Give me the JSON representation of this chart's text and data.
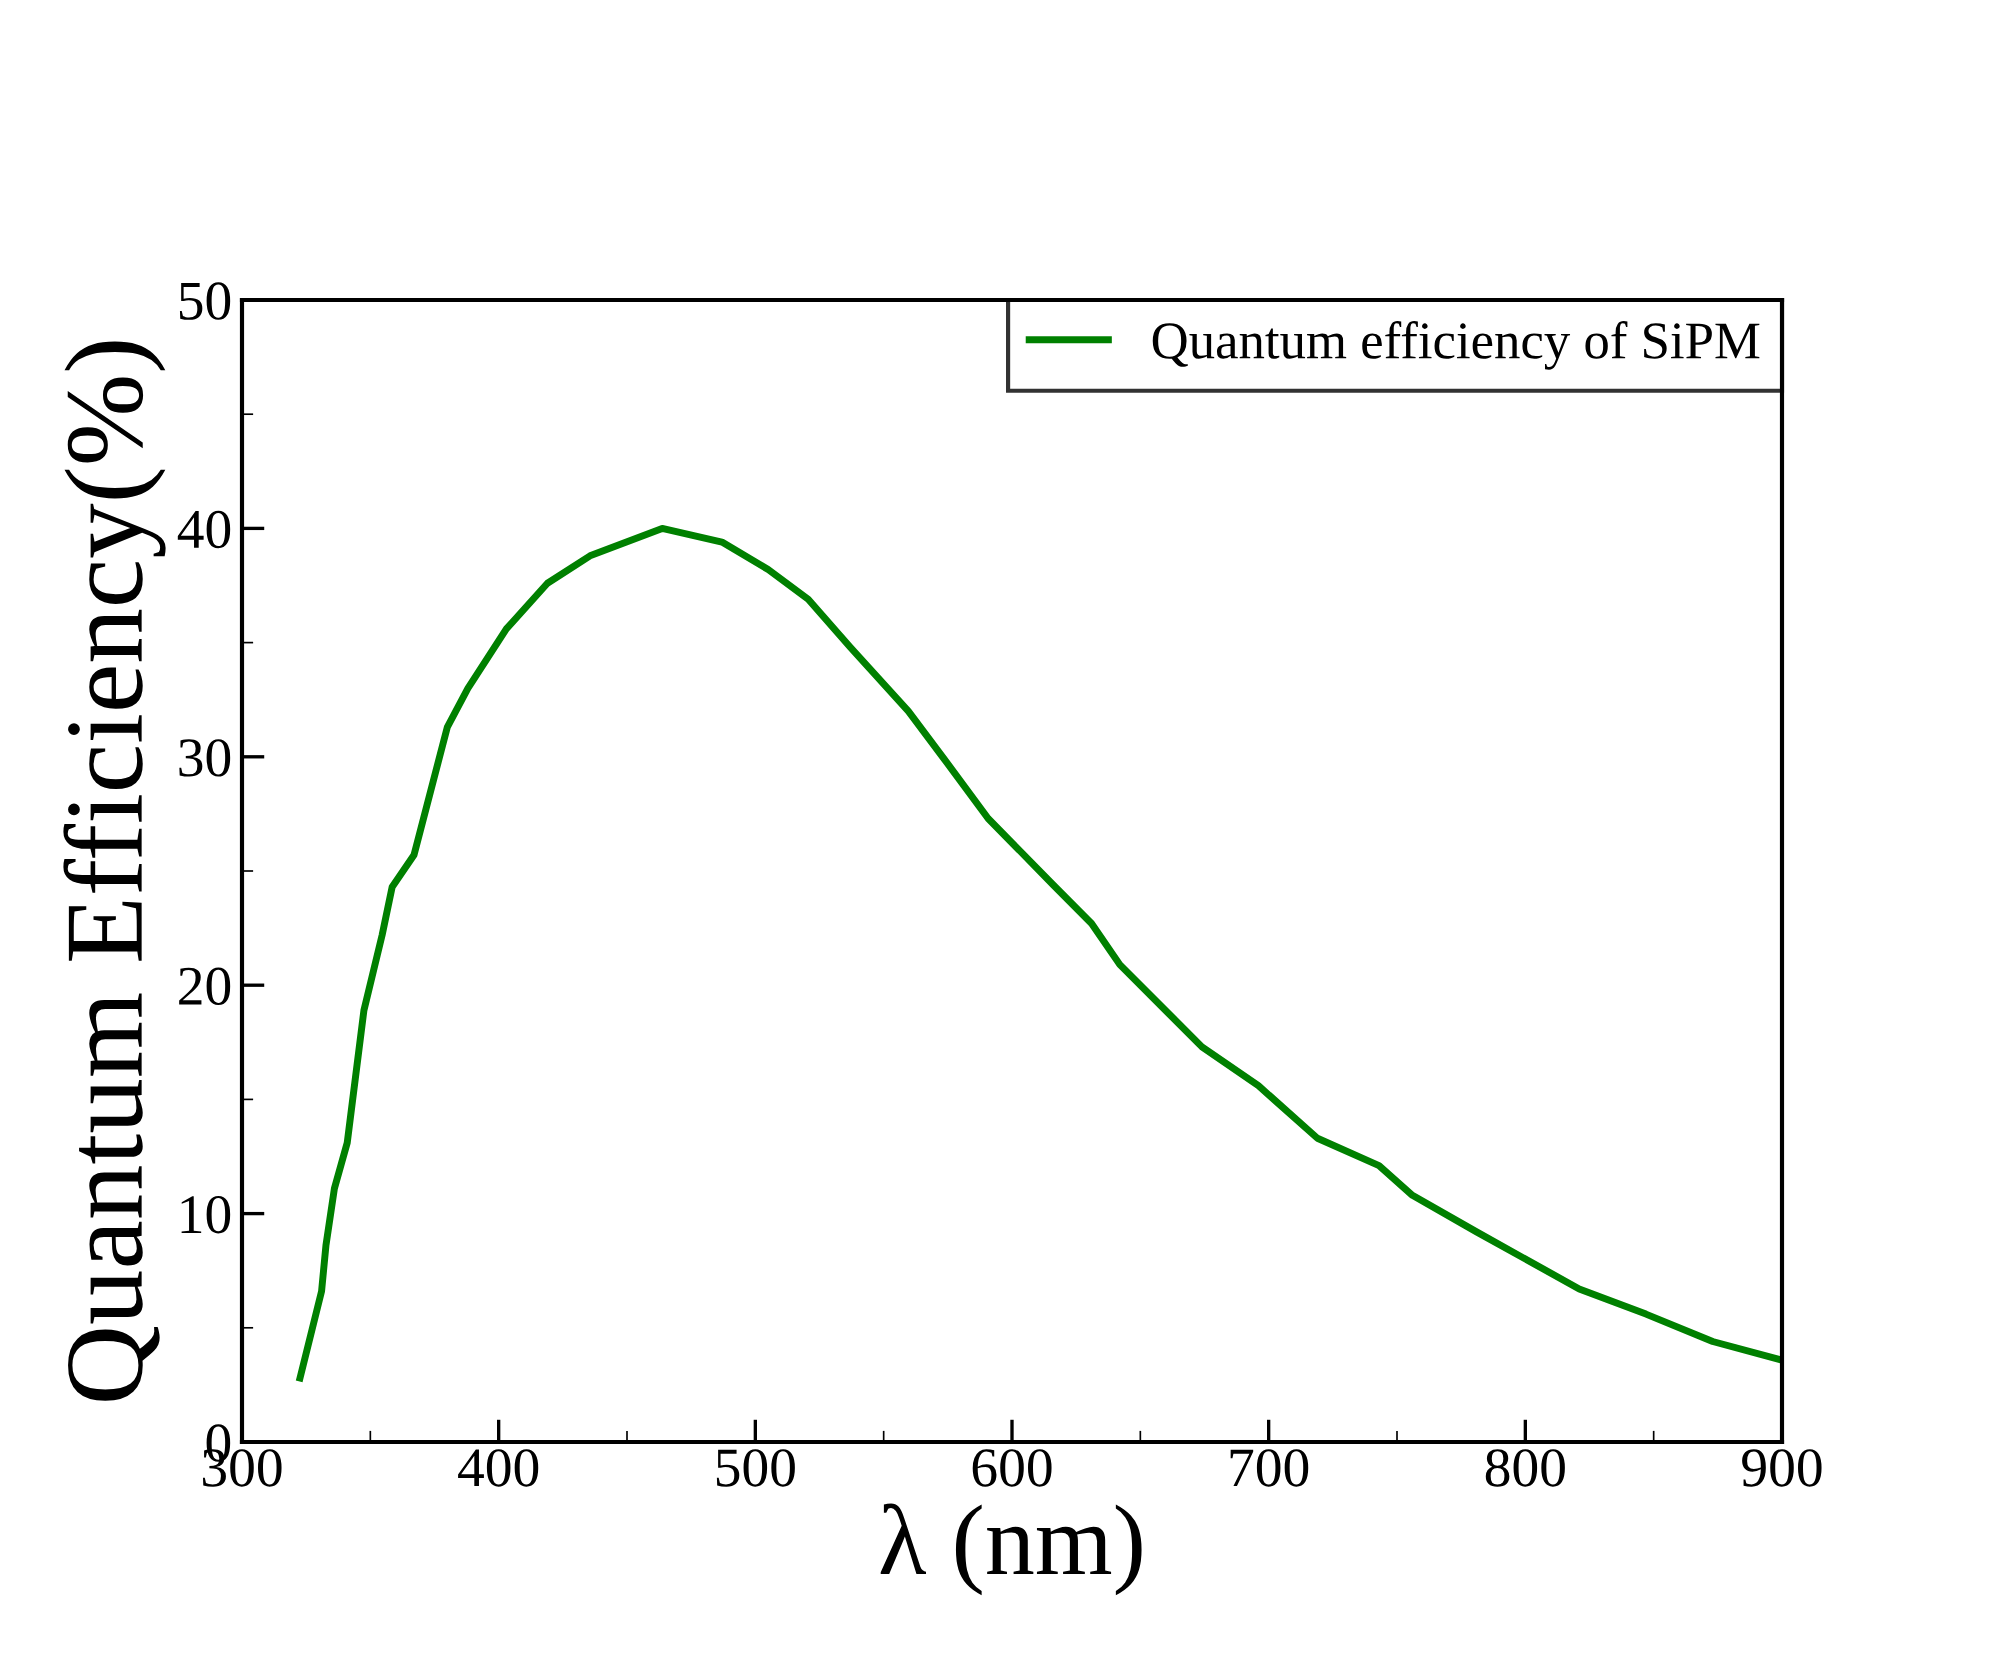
{
  "chart_data": {
    "type": "line",
    "xlabel": "λ (nm)",
    "ylabel": "Quantum Efficiency(%)",
    "xlim": [
      300,
      900
    ],
    "ylim": [
      0,
      50
    ],
    "xticks": [
      300,
      400,
      500,
      600,
      700,
      800,
      900
    ],
    "yticks": [
      0,
      10,
      20,
      30,
      40,
      50
    ],
    "grid": false,
    "legend": "top right",
    "marker": "none",
    "line_style": "solid",
    "series": [
      {
        "name": "Quantum efficiency of SiPM",
        "color": "#008000",
        "x": [
          322.6,
          331,
          332.7,
          336,
          341,
          347.5,
          354.6,
          358.5,
          367,
          380,
          388,
          403,
          419,
          435.6,
          463.7,
          487,
          505,
          520.6,
          537,
          559.6,
          573.6,
          590.7,
          616,
          631,
          642,
          674,
          696,
          719,
          743,
          756,
          781,
          821,
          847,
          873,
          899.4
        ],
        "values": [
          2.8,
          6.6,
          8.6,
          11.1,
          13.1,
          18.9,
          22.2,
          24.3,
          25.7,
          31.3,
          33.0,
          35.6,
          37.6,
          38.8,
          40.0,
          39.4,
          38.2,
          36.9,
          34.8,
          32.0,
          29.9,
          27.3,
          24.4,
          22.7,
          20.9,
          17.3,
          15.6,
          13.3,
          12.1,
          10.8,
          9.2,
          6.7,
          5.6,
          4.4,
          3.6
        ]
      }
    ]
  }
}
